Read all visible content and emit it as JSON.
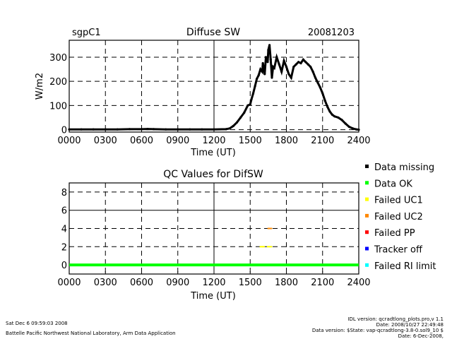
{
  "header": {
    "site": "sgpC1",
    "date": "20081203"
  },
  "chart_data": [
    {
      "type": "scatter",
      "title": "Diffuse SW",
      "xlabel": "Time (UT)",
      "ylabel": "W/m2",
      "xlim": [
        0,
        24
      ],
      "ylim": [
        -10,
        370
      ],
      "x_ticks": [
        0,
        3,
        6,
        9,
        12,
        15,
        18,
        21,
        24
      ],
      "x_tick_labels": [
        "0000",
        "0300",
        "0600",
        "0900",
        "1200",
        "1500",
        "1800",
        "2100",
        "2400"
      ],
      "y_ticks": [
        0,
        100,
        200,
        300
      ],
      "y_tick_labels": [
        "0",
        "100",
        "200",
        "300"
      ],
      "grid": "dashed",
      "series": [
        {
          "points": [
            [
              0.0,
              1
            ],
            [
              1.0,
              1
            ],
            [
              2.0,
              1
            ],
            [
              3.0,
              1
            ],
            [
              4.0,
              1
            ],
            [
              5.0,
              2
            ],
            [
              6.0,
              2
            ],
            [
              6.5,
              3
            ],
            [
              7.0,
              2
            ],
            [
              8.0,
              1
            ],
            [
              9.0,
              1
            ],
            [
              10.0,
              1
            ],
            [
              11.0,
              1
            ],
            [
              12.0,
              1
            ],
            [
              13.0,
              2
            ],
            [
              13.3,
              5
            ],
            [
              13.6,
              15
            ],
            [
              13.9,
              30
            ],
            [
              14.2,
              50
            ],
            [
              14.5,
              70
            ],
            [
              14.8,
              100
            ],
            [
              15.0,
              105
            ],
            [
              15.1,
              125
            ],
            [
              15.25,
              150
            ],
            [
              15.4,
              180
            ],
            [
              15.55,
              210
            ],
            [
              15.7,
              225
            ],
            [
              15.85,
              250
            ],
            [
              16.0,
              240
            ],
            [
              16.05,
              275
            ],
            [
              16.2,
              230
            ],
            [
              16.3,
              300
            ],
            [
              16.45,
              280
            ],
            [
              16.5,
              330
            ],
            [
              16.6,
              350
            ],
            [
              16.7,
              290
            ],
            [
              16.8,
              215
            ],
            [
              16.9,
              260
            ],
            [
              17.0,
              255
            ],
            [
              17.2,
              300
            ],
            [
              17.4,
              270
            ],
            [
              17.6,
              240
            ],
            [
              17.8,
              285
            ],
            [
              18.0,
              260
            ],
            [
              18.2,
              230
            ],
            [
              18.4,
              215
            ],
            [
              18.6,
              260
            ],
            [
              18.8,
              270
            ],
            [
              19.0,
              280
            ],
            [
              19.2,
              275
            ],
            [
              19.4,
              290
            ],
            [
              19.6,
              280
            ],
            [
              19.8,
              270
            ],
            [
              20.0,
              260
            ],
            [
              20.2,
              240
            ],
            [
              20.4,
              215
            ],
            [
              20.6,
              195
            ],
            [
              20.8,
              175
            ],
            [
              21.0,
              150
            ],
            [
              21.2,
              120
            ],
            [
              21.4,
              95
            ],
            [
              21.6,
              75
            ],
            [
              21.8,
              62
            ],
            [
              22.0,
              55
            ],
            [
              22.3,
              50
            ],
            [
              22.6,
              40
            ],
            [
              22.9,
              25
            ],
            [
              23.2,
              12
            ],
            [
              23.5,
              5
            ],
            [
              23.8,
              1
            ],
            [
              24.0,
              0
            ]
          ]
        }
      ]
    },
    {
      "type": "scatter",
      "title": "QC Values for DifSW",
      "xlabel": "Time (UT)",
      "ylabel": "",
      "xlim": [
        0,
        24
      ],
      "ylim": [
        -1,
        9
      ],
      "x_ticks": [
        0,
        3,
        6,
        9,
        12,
        15,
        18,
        21,
        24
      ],
      "x_tick_labels": [
        "0000",
        "0300",
        "0600",
        "0900",
        "1200",
        "1500",
        "1800",
        "2100",
        "2400"
      ],
      "y_ticks": [
        0,
        2,
        4,
        6,
        8
      ],
      "y_tick_labels": [
        "0",
        "2",
        "4",
        "6",
        "8"
      ],
      "grid": "dashed",
      "legend_position": "right",
      "series": [
        {
          "name": "Data missing",
          "color": "#000000",
          "points": []
        },
        {
          "name": "Data OK",
          "color": "#00ff00",
          "line": [
            [
              0,
              0
            ],
            [
              24,
              0
            ]
          ]
        },
        {
          "name": "Failed UC1",
          "color": "#ffff00",
          "points": [
            [
              15.9,
              2
            ],
            [
              16.1,
              2
            ],
            [
              16.5,
              2
            ],
            [
              16.7,
              2
            ]
          ]
        },
        {
          "name": "Failed UC2",
          "color": "#ff8800",
          "points": [
            [
              16.55,
              4
            ],
            [
              16.7,
              4
            ]
          ]
        },
        {
          "name": "Failed PP",
          "color": "#ff0000",
          "points": []
        },
        {
          "name": "Tracker off",
          "color": "#0000ff",
          "points": []
        },
        {
          "name": "Failed RI limit",
          "color": "#00ffff",
          "points": []
        }
      ]
    }
  ],
  "footer": {
    "timestamp": "Sat Dec  6 09:59:03 2008",
    "lab": "Battelle Pacific Northwest National Laboratory, Arm Data Application",
    "idl_version": "IDL version: qcradtlong_plots.pro,v 1.1",
    "idl_date": "Date: 2008/10/27 22:49:48",
    "data_version": "Data version: $State: vap-qcradtlong-3.8-0.sol9_10 $",
    "plot_date": "Date: 6-Dec-2008,"
  }
}
